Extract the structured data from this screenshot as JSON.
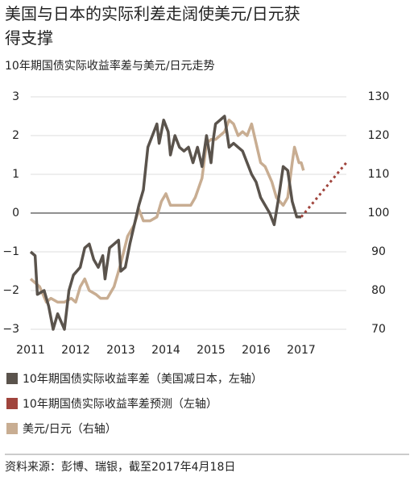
{
  "chart_data": {
    "type": "line",
    "title": "美国与日本的实际利差走阔使美元/日元获得支撑",
    "subtitle": "10年期国债实际收益率差与美元/日元走势",
    "source": "资料来源：彭博、瑞银，截至2017年4月18日",
    "xlim": [
      2011,
      2018
    ],
    "xticks": [
      2011,
      2012,
      2013,
      2014,
      2015,
      2016,
      2017
    ],
    "ylim": [
      -3,
      3
    ],
    "yticks": [
      {
        "value": -3,
        "label": "−3"
      },
      {
        "value": -2,
        "label": "−2"
      },
      {
        "value": -1,
        "label": "−1"
      },
      0,
      1,
      2,
      3
    ],
    "y2lim": [
      70,
      130
    ],
    "y2ticks": [
      70,
      80,
      90,
      100,
      110,
      120,
      130
    ],
    "grid": true,
    "series": [
      {
        "name": "10年期国债实际收益率差（美国减日本，左轴）",
        "color": "#5a534c",
        "style": "solid",
        "axis": "y",
        "x": [
          2011.0,
          2011.1,
          2011.15,
          2011.3,
          2011.4,
          2011.5,
          2011.6,
          2011.75,
          2011.85,
          2011.95,
          2012.1,
          2012.2,
          2012.3,
          2012.4,
          2012.5,
          2012.6,
          2012.65,
          2012.75,
          2012.85,
          2012.95,
          2013.0,
          2013.1,
          2013.2,
          2013.3,
          2013.4,
          2013.5,
          2013.6,
          2013.7,
          2013.8,
          2013.85,
          2013.95,
          2014.05,
          2014.1,
          2014.2,
          2014.3,
          2014.4,
          2014.5,
          2014.6,
          2014.7,
          2014.8,
          2014.9,
          2015.0,
          2015.05,
          2015.1,
          2015.2,
          2015.3,
          2015.4,
          2015.5,
          2015.6,
          2015.7,
          2015.8,
          2015.9,
          2016.0,
          2016.1,
          2016.2,
          2016.3,
          2016.4,
          2016.5,
          2016.6,
          2016.7,
          2016.8,
          2016.9,
          2017.0
        ],
        "values": [
          -1.0,
          -1.1,
          -2.1,
          -2.0,
          -2.4,
          -3.0,
          -2.6,
          -3.0,
          -2.0,
          -1.6,
          -1.4,
          -0.9,
          -0.8,
          -1.2,
          -1.4,
          -1.1,
          -1.7,
          -0.9,
          -0.8,
          -0.7,
          -1.5,
          -1.4,
          -0.8,
          -0.3,
          0.2,
          0.6,
          1.7,
          2.0,
          2.3,
          1.8,
          2.4,
          2.1,
          1.5,
          2.0,
          1.7,
          1.6,
          1.7,
          1.3,
          1.7,
          1.2,
          2.0,
          1.3,
          1.9,
          2.3,
          2.4,
          2.5,
          1.7,
          1.8,
          1.7,
          1.6,
          1.3,
          1.0,
          0.8,
          0.4,
          0.2,
          0.0,
          -0.3,
          0.4,
          1.2,
          1.1,
          0.3,
          -0.1,
          -0.1
        ]
      },
      {
        "name": "10年期国债实际收益率差预测（左轴）",
        "color": "#a0443c",
        "style": "dotted",
        "axis": "y",
        "x": [
          2017.0,
          2018.0
        ],
        "values": [
          -0.1,
          1.3
        ]
      },
      {
        "name": "美元/日元（右轴）",
        "color": "#c8ad92",
        "style": "solid",
        "axis": "y2",
        "x": [
          2011.0,
          2011.1,
          2011.2,
          2011.35,
          2011.45,
          2011.6,
          2011.75,
          2011.9,
          2012.0,
          2012.1,
          2012.2,
          2012.3,
          2012.45,
          2012.55,
          2012.7,
          2012.85,
          2013.0,
          2013.15,
          2013.3,
          2013.4,
          2013.5,
          2013.65,
          2013.8,
          2013.9,
          2014.0,
          2014.1,
          2014.25,
          2014.4,
          2014.55,
          2014.65,
          2014.8,
          2014.9,
          2015.0,
          2015.1,
          2015.2,
          2015.3,
          2015.4,
          2015.5,
          2015.6,
          2015.7,
          2015.8,
          2015.9,
          2016.0,
          2016.1,
          2016.2,
          2016.35,
          2016.45,
          2016.6,
          2016.7,
          2016.8,
          2016.85,
          2016.95,
          2017.0,
          2017.05
        ],
        "values": [
          83,
          82,
          81,
          77,
          78,
          77,
          77,
          78,
          77,
          81,
          83,
          80,
          79,
          78,
          78,
          81,
          87,
          94,
          97,
          101,
          98,
          98,
          99,
          103,
          105,
          102,
          102,
          102,
          102,
          104,
          109,
          118,
          119,
          119,
          120,
          121,
          124,
          123,
          120,
          121,
          120,
          123,
          118,
          113,
          112,
          108,
          104,
          102,
          104,
          113,
          117,
          113,
          113,
          111
        ]
      }
    ]
  }
}
